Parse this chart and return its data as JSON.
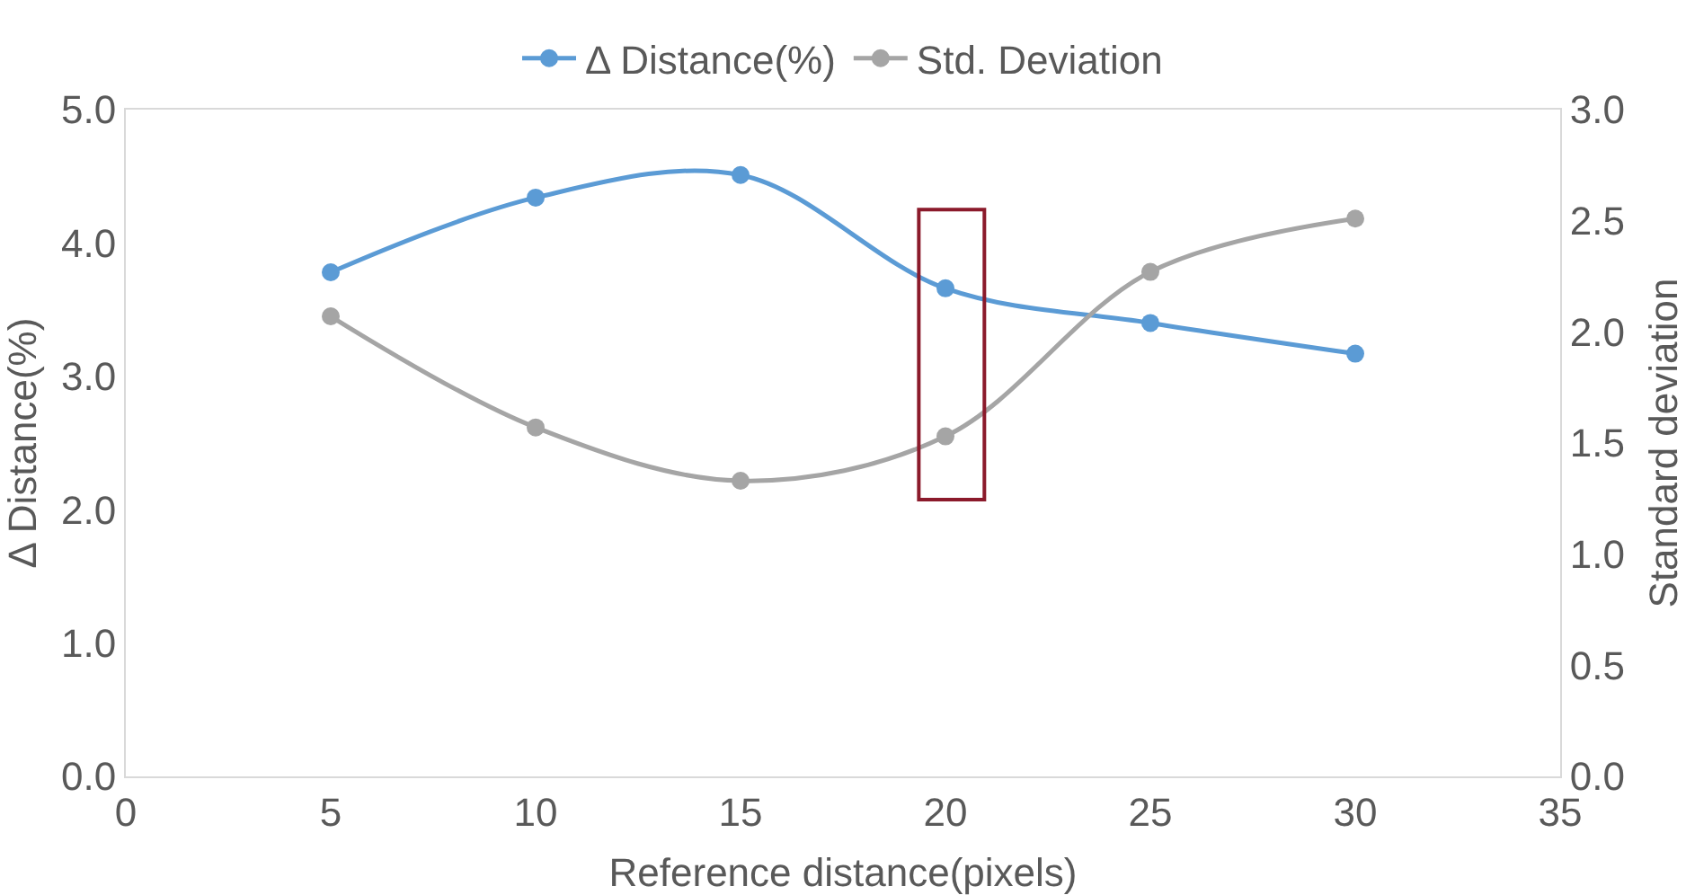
{
  "chart_data": {
    "type": "line",
    "xlabel": "Reference distance(pixels)",
    "ylabel": "Δ Distance(%)",
    "y2label": "Standard deviation",
    "x": [
      5,
      10,
      15,
      20,
      25,
      30
    ],
    "series": [
      {
        "name": "Δ Distance(%)",
        "color": "#5b9bd5",
        "values": [
          3.78,
          4.34,
          4.51,
          3.66,
          3.4,
          3.17
        ]
      },
      {
        "name": "Std. Deviation",
        "color": "#a5a5a5",
        "values": [
          2.07,
          1.57,
          1.33,
          1.53,
          2.27,
          2.51
        ],
        "axis": "y2"
      }
    ],
    "xlim": [
      0,
      35
    ],
    "xticks": [
      0,
      5,
      10,
      15,
      20,
      25,
      30,
      35
    ],
    "ylim": [
      0,
      5
    ],
    "yticks": [
      {
        "value": 0,
        "label": "0.0"
      },
      {
        "value": 1,
        "label": "1.0"
      },
      {
        "value": 2,
        "label": "2.0"
      },
      {
        "value": 3,
        "label": "3.0"
      },
      {
        "value": 4,
        "label": "4.0"
      },
      {
        "value": 5,
        "label": "5.0"
      }
    ],
    "y2lim": [
      0,
      3
    ],
    "y2ticks": [
      {
        "value": 0,
        "label": "0.0"
      },
      {
        "value": 0.5,
        "label": "0.5"
      },
      {
        "value": 1,
        "label": "1.0"
      },
      {
        "value": 1.5,
        "label": "1.5"
      },
      {
        "value": 2,
        "label": "2.0"
      },
      {
        "value": 2.5,
        "label": "2.5"
      },
      {
        "value": 3,
        "label": "3.0"
      }
    ],
    "grid": false,
    "legend": "top",
    "marker": "circle",
    "line_style": "solid"
  }
}
